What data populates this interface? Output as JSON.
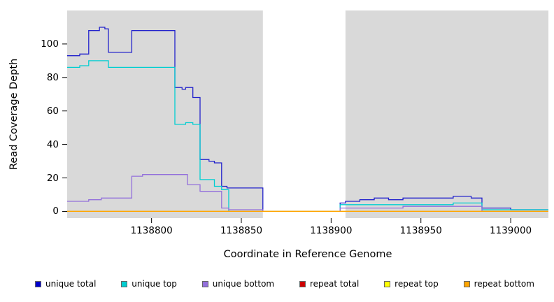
{
  "chart_data": {
    "type": "line",
    "subtype": "step-coverage",
    "title": "",
    "xlabel": "Coordinate in Reference Genome",
    "ylabel": "Read Coverage Depth",
    "xlim": [
      1138753,
      1139021
    ],
    "ylim": [
      -4,
      120
    ],
    "grid": false,
    "legend_position": "bottom",
    "plot_bg": "#D9D9D9",
    "gap_region": {
      "x0": 1138862,
      "x1": 1138908,
      "color": "#FFFFFF"
    },
    "x_ticks": [
      "1138800",
      "1138850",
      "1138900",
      "1138950",
      "1139000"
    ],
    "x_tick_values": [
      1138800,
      1138850,
      1138900,
      1138950,
      1139000
    ],
    "y_ticks": [
      "0",
      "20",
      "40",
      "60",
      "80",
      "100"
    ],
    "y_tick_values": [
      0,
      20,
      40,
      60,
      80,
      100
    ],
    "series": [
      {
        "name": "unique total",
        "color": "#2222CC",
        "points": [
          [
            1138753,
            93
          ],
          [
            1138760,
            94
          ],
          [
            1138765,
            108
          ],
          [
            1138771,
            110
          ],
          [
            1138774,
            109
          ],
          [
            1138776,
            95
          ],
          [
            1138789,
            108
          ],
          [
            1138813,
            74
          ],
          [
            1138817,
            73
          ],
          [
            1138819,
            74
          ],
          [
            1138823,
            68
          ],
          [
            1138827,
            31
          ],
          [
            1138832,
            30
          ],
          [
            1138835,
            29
          ],
          [
            1138839,
            15
          ],
          [
            1138842,
            14
          ],
          [
            1138862,
            0
          ],
          [
            1138905,
            5
          ],
          [
            1138908,
            6
          ],
          [
            1138916,
            7
          ],
          [
            1138924,
            8
          ],
          [
            1138932,
            7
          ],
          [
            1138940,
            8
          ],
          [
            1138968,
            9
          ],
          [
            1138978,
            8
          ],
          [
            1138984,
            2
          ],
          [
            1139000,
            1
          ],
          [
            1139021,
            1
          ]
        ]
      },
      {
        "name": "unique top",
        "color": "#00CED1",
        "points": [
          [
            1138753,
            86
          ],
          [
            1138760,
            87
          ],
          [
            1138765,
            90
          ],
          [
            1138776,
            86
          ],
          [
            1138813,
            52
          ],
          [
            1138819,
            53
          ],
          [
            1138823,
            52
          ],
          [
            1138827,
            19
          ],
          [
            1138835,
            15
          ],
          [
            1138839,
            13
          ],
          [
            1138843,
            0
          ],
          [
            1138905,
            4
          ],
          [
            1138968,
            5
          ],
          [
            1138984,
            1
          ],
          [
            1139000,
            1
          ],
          [
            1139021,
            1
          ]
        ]
      },
      {
        "name": "unique bottom",
        "color": "#9370DB",
        "points": [
          [
            1138753,
            6
          ],
          [
            1138765,
            7
          ],
          [
            1138772,
            8
          ],
          [
            1138789,
            21
          ],
          [
            1138795,
            22
          ],
          [
            1138820,
            16
          ],
          [
            1138827,
            12
          ],
          [
            1138839,
            2
          ],
          [
            1138843,
            1
          ],
          [
            1138862,
            0
          ],
          [
            1138905,
            2
          ],
          [
            1138940,
            3
          ],
          [
            1138984,
            0
          ],
          [
            1139021,
            0
          ]
        ]
      },
      {
        "name": "repeat total",
        "color": "#CC0000",
        "points": [
          [
            1138753,
            0
          ],
          [
            1139021,
            0
          ]
        ]
      },
      {
        "name": "repeat top",
        "color": "#FFFF00",
        "points": [
          [
            1138753,
            0
          ],
          [
            1139021,
            0
          ]
        ]
      },
      {
        "name": "repeat bottom",
        "color": "#FFA500",
        "points": [
          [
            1138753,
            0
          ],
          [
            1139021,
            0
          ]
        ]
      }
    ],
    "legend": [
      {
        "label": "unique total",
        "color": "#0000CD"
      },
      {
        "label": "unique top",
        "color": "#00CED1"
      },
      {
        "label": "unique bottom",
        "color": "#9370DB"
      },
      {
        "label": "repeat total",
        "color": "#CD0000"
      },
      {
        "label": "repeat top",
        "color": "#FFFF00"
      },
      {
        "label": "repeat bottom",
        "color": "#FFA500"
      }
    ]
  }
}
